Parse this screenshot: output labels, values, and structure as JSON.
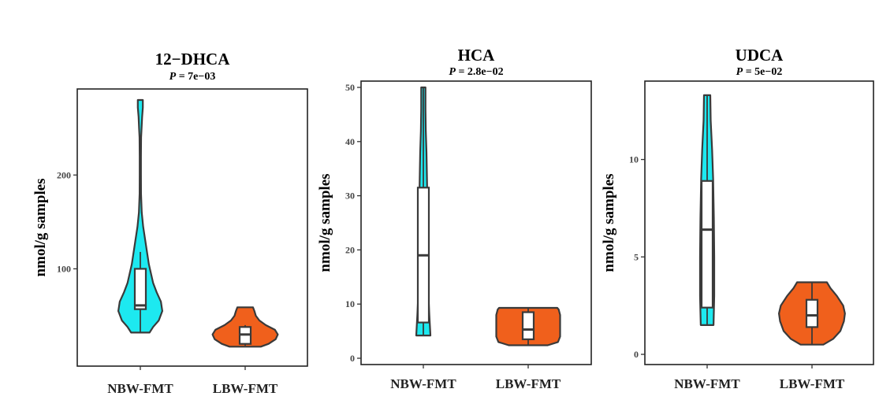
{
  "colors": {
    "nbw": "#1de9f0",
    "lbw": "#f0601c",
    "outline": "#3a3a3a",
    "frame": "#222222"
  },
  "chart_data": [
    {
      "type": "violin",
      "title": "12−DHCA",
      "p_label": "P",
      "p_value": " = 7e−03",
      "ylabel": "nmol/g samples",
      "ylim": [
        3,
        285
      ],
      "yticks": [
        100,
        200
      ],
      "ytick_labels": [
        "100",
        "200"
      ],
      "categories": [
        "NBW-FMT",
        "LBW-FMT"
      ],
      "series": [
        {
          "category": "NBW-FMT",
          "color": "#1de9f0",
          "box": {
            "min": 32,
            "q1": 57,
            "median": 61,
            "q3": 100,
            "max": 118
          },
          "violin": {
            "min": 32,
            "max": 280,
            "profile": [
              [
                32,
                0.26
              ],
              [
                38,
                0.36
              ],
              [
                45,
                0.52
              ],
              [
                55,
                0.62
              ],
              [
                65,
                0.58
              ],
              [
                75,
                0.46
              ],
              [
                85,
                0.36
              ],
              [
                95,
                0.3
              ],
              [
                105,
                0.24
              ],
              [
                115,
                0.2
              ],
              [
                130,
                0.14
              ],
              [
                145,
                0.08
              ],
              [
                160,
                0.04
              ],
              [
                180,
                0.02
              ],
              [
                200,
                0.018
              ],
              [
                220,
                0.018
              ],
              [
                240,
                0.022
              ],
              [
                250,
                0.035
              ],
              [
                262,
                0.05
              ],
              [
                272,
                0.07
              ],
              [
                280,
                0.07
              ]
            ]
          }
        },
        {
          "category": "LBW-FMT",
          "color": "#f0601c",
          "box": {
            "min": 18,
            "q1": 20,
            "median": 30,
            "q3": 38,
            "max": 40
          },
          "violin": {
            "min": 17,
            "max": 59,
            "profile": [
              [
                17,
                0.44
              ],
              [
                20,
                0.66
              ],
              [
                25,
                0.86
              ],
              [
                30,
                0.92
              ],
              [
                35,
                0.84
              ],
              [
                40,
                0.58
              ],
              [
                45,
                0.4
              ],
              [
                50,
                0.3
              ],
              [
                55,
                0.26
              ],
              [
                59,
                0.22
              ]
            ]
          }
        }
      ]
    },
    {
      "type": "violin",
      "title": "HCA",
      "p_label": "P",
      "p_value": " = 2.8e−02",
      "ylabel": "nmol/g samples",
      "ylim": [
        0,
        50
      ],
      "yticks": [
        0,
        10,
        20,
        30,
        40,
        50
      ],
      "ytick_labels": [
        "0",
        "10",
        "20",
        "30",
        "40",
        "50"
      ],
      "categories": [
        "NBW-FMT",
        "LBW-FMT"
      ],
      "series": [
        {
          "category": "NBW-FMT",
          "color": "#1de9f0",
          "box": {
            "min": 4.2,
            "q1": 6.6,
            "median": 19,
            "q3": 31.5,
            "max": 50
          },
          "violin": {
            "min": 4.2,
            "max": 50,
            "profile": [
              [
                4.2,
                0.2
              ],
              [
                8,
                0.17
              ],
              [
                12,
                0.14
              ],
              [
                16,
                0.11
              ],
              [
                20,
                0.1
              ],
              [
                25,
                0.1
              ],
              [
                30,
                0.11
              ],
              [
                34,
                0.1
              ],
              [
                38,
                0.09
              ],
              [
                42,
                0.07
              ],
              [
                46,
                0.06
              ],
              [
                50,
                0.06
              ]
            ]
          }
        },
        {
          "category": "LBW-FMT",
          "color": "#f0601c",
          "box": {
            "min": 2.4,
            "q1": 3.5,
            "median": 5.3,
            "q3": 8.5,
            "max": 9.3
          },
          "violin": {
            "min": 2.4,
            "max": 9.3,
            "profile": [
              [
                2.4,
                0.55
              ],
              [
                3,
                0.84
              ],
              [
                4,
                0.9
              ],
              [
                5,
                0.9
              ],
              [
                6,
                0.9
              ],
              [
                7,
                0.9
              ],
              [
                8,
                0.9
              ],
              [
                9,
                0.86
              ],
              [
                9.3,
                0.82
              ]
            ]
          }
        }
      ]
    },
    {
      "type": "violin",
      "title": "UDCA",
      "p_label": "P",
      "p_value": " = 5e−02",
      "ylabel": "nmol/g samples",
      "ylim": [
        -0.2,
        13.7
      ],
      "yticks": [
        0,
        5,
        10
      ],
      "ytick_labels": [
        "0",
        "5",
        "10"
      ],
      "categories": [
        "NBW-FMT",
        "LBW-FMT"
      ],
      "series": [
        {
          "category": "NBW-FMT",
          "color": "#1de9f0",
          "box": {
            "min": 1.5,
            "q1": 2.4,
            "median": 6.4,
            "q3": 8.9,
            "max": 13.3
          },
          "violin": {
            "min": 1.5,
            "max": 13.3,
            "profile": [
              [
                1.5,
                0.18
              ],
              [
                3,
                0.2
              ],
              [
                5,
                0.2
              ],
              [
                7,
                0.19
              ],
              [
                9,
                0.17
              ],
              [
                10.5,
                0.14
              ],
              [
                12,
                0.1
              ],
              [
                13.3,
                0.09
              ]
            ]
          }
        },
        {
          "category": "LBW-FMT",
          "color": "#f0601c",
          "box": {
            "min": 0.5,
            "q1": 1.4,
            "median": 2.0,
            "q3": 2.8,
            "max": 3.7
          },
          "violin": {
            "min": 0.5,
            "max": 3.7,
            "profile": [
              [
                0.5,
                0.32
              ],
              [
                0.8,
                0.6
              ],
              [
                1.2,
                0.8
              ],
              [
                1.7,
                0.9
              ],
              [
                2.1,
                0.93
              ],
              [
                2.5,
                0.88
              ],
              [
                3,
                0.7
              ],
              [
                3.4,
                0.52
              ],
              [
                3.7,
                0.42
              ]
            ]
          }
        }
      ]
    }
  ]
}
